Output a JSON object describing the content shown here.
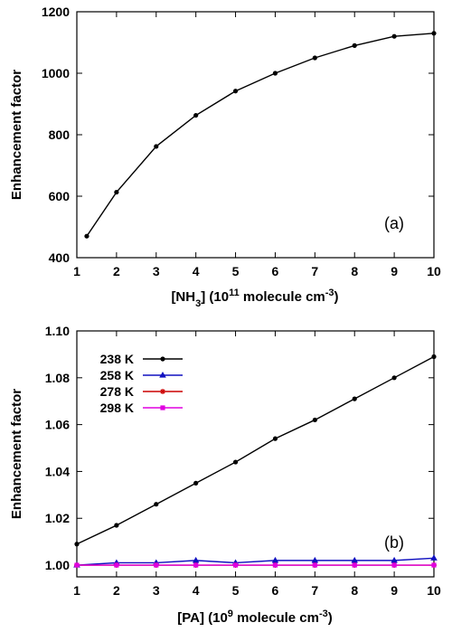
{
  "chart_data": [
    {
      "type": "line",
      "panel_label": "(a)",
      "ylabel": "Enhancement factor",
      "xlabel": "[NH3] (10^11 molecule cm^-3)",
      "xlabel_parts": {
        "a": "[NH",
        "sub": "3",
        "b": "] (10",
        "sup1": "11",
        "c": " molecule cm",
        "sup2": "-3",
        "d": ")"
      },
      "xlim": [
        1,
        10
      ],
      "ylim": [
        400,
        1200
      ],
      "xticks": [
        1,
        2,
        3,
        4,
        5,
        6,
        7,
        8,
        9,
        10
      ],
      "yticks": [
        400,
        600,
        800,
        1000,
        1200
      ],
      "series": [
        {
          "color": "#000000",
          "marker": "circle",
          "x": [
            1.25,
            2,
            3,
            4,
            5,
            6,
            7,
            8,
            9,
            10
          ],
          "y": [
            470,
            613,
            762,
            863,
            942,
            1000,
            1050,
            1090,
            1120,
            1130
          ]
        }
      ]
    },
    {
      "type": "line",
      "panel_label": "(b)",
      "ylabel": "Enhancement factor",
      "xlabel": "[PA] (10^9 molecule cm^-3)",
      "xlabel_parts": {
        "a": "[PA] (10",
        "sup1": "9",
        "c": " molecule cm",
        "sup2": "-3",
        "d": ")"
      },
      "xlim": [
        1,
        10
      ],
      "ylim": [
        0.995,
        1.1
      ],
      "xticks": [
        1,
        2,
        3,
        4,
        5,
        6,
        7,
        8,
        9,
        10
      ],
      "yticks": [
        "1.00",
        "1.02",
        "1.04",
        "1.06",
        "1.08",
        "1.10"
      ],
      "legend_position": "top-left",
      "series": [
        {
          "name": "238 K",
          "color": "#000000",
          "marker": "circle",
          "x": [
            1,
            2,
            3,
            4,
            5,
            6,
            7,
            8,
            9,
            10
          ],
          "y": [
            1.009,
            1.017,
            1.026,
            1.035,
            1.044,
            1.054,
            1.062,
            1.071,
            1.08,
            1.089
          ]
        },
        {
          "name": "258 K",
          "color": "#1010c0",
          "marker": "triangle",
          "x": [
            1,
            2,
            3,
            4,
            5,
            6,
            7,
            8,
            9,
            10
          ],
          "y": [
            1.0,
            1.001,
            1.001,
            1.002,
            1.001,
            1.002,
            1.002,
            1.002,
            1.002,
            1.003
          ]
        },
        {
          "name": "278 K",
          "color": "#cc0000",
          "marker": "star",
          "x": [
            1,
            2,
            3,
            4,
            5,
            6,
            7,
            8,
            9,
            10
          ],
          "y": [
            1.0,
            1.0,
            1.0,
            1.0,
            1.0,
            1.0,
            1.0,
            1.0,
            1.0,
            1.0
          ]
        },
        {
          "name": "298 K",
          "color": "#e000e0",
          "marker": "square",
          "x": [
            1,
            2,
            3,
            4,
            5,
            6,
            7,
            8,
            9,
            10
          ],
          "y": [
            1.0,
            1.0,
            1.0,
            1.0,
            1.0,
            1.0,
            1.0,
            1.0,
            1.0,
            1.0
          ]
        }
      ]
    }
  ]
}
